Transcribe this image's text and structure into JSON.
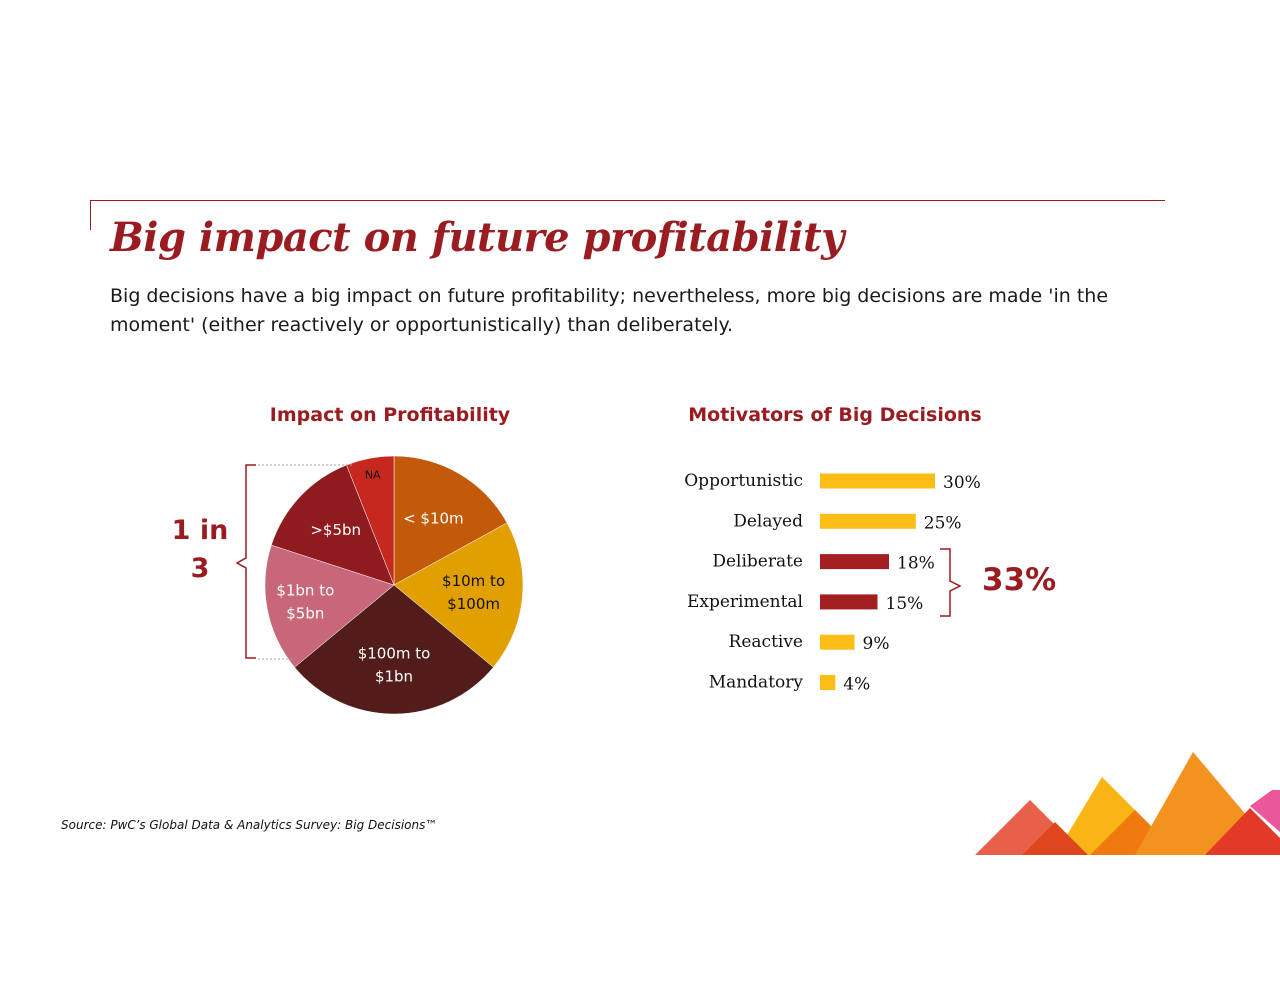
{
  "page": {
    "title": "Big impact on future profitability",
    "subtitle": "Big decisions have a big impact on future profitability; nevertheless, more big decisions are made 'in the moment' (either reactively or opportunistically) than deliberately.",
    "source": "Source: PwC’s Global Data & Analytics Survey: Big Decisions™"
  },
  "colors": {
    "brand_red": "#9b1c20",
    "bar_yellow": "#fbbd16",
    "bar_red": "#a31f22"
  },
  "chart_data": [
    {
      "type": "pie",
      "title": "Impact on Profitability",
      "slices": [
        {
          "label": "< $10m",
          "value": 17,
          "color": "#c35a09"
        },
        {
          "label": "$10m to $100m",
          "value": 19,
          "color": "#e2a000"
        },
        {
          "label": "$100m to $1bn",
          "value": 28,
          "color": "#511c1a"
        },
        {
          "label": "$1bn to $5bn",
          "value": 16,
          "color": "#c8667a"
        },
        {
          "label": ">$5bn",
          "value": 14,
          "color": "#8f1b1f"
        },
        {
          "label": "NA",
          "value": 6,
          "color": "#c6281f"
        }
      ],
      "annotation": "1 in 3"
    },
    {
      "type": "bar",
      "orientation": "horizontal",
      "title": "Motivators of Big Decisions",
      "categories": [
        "Opportunistic",
        "Delayed",
        "Deliberate",
        "Experimental",
        "Reactive",
        "Mandatory"
      ],
      "values": [
        30,
        25,
        18,
        15,
        9,
        4
      ],
      "value_labels": [
        "30%",
        "25%",
        "18%",
        "15%",
        "9%",
        "4%"
      ],
      "highlight": [
        "Deliberate",
        "Experimental"
      ],
      "annotation": "33%"
    }
  ]
}
